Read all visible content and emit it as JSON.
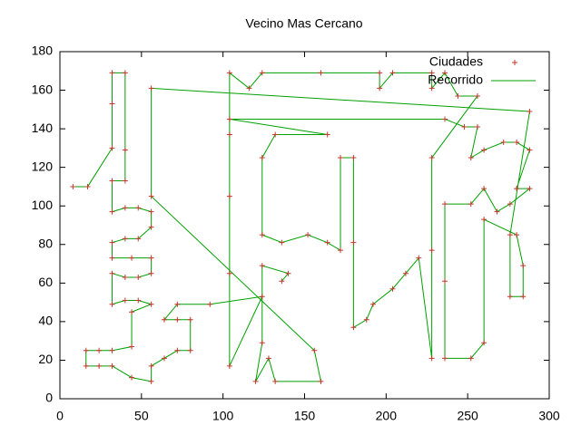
{
  "chart_data": {
    "type": "line",
    "title": "Vecino Mas Cercano",
    "x": [
      8,
      17,
      32,
      32,
      32,
      40,
      40,
      40,
      32,
      32,
      40,
      48,
      56,
      56,
      48,
      40,
      32,
      32,
      44,
      56,
      56,
      48,
      40,
      32,
      32,
      40,
      48,
      56,
      44,
      44,
      32,
      24,
      16,
      16,
      24,
      32,
      44,
      56,
      56,
      64,
      72,
      80,
      80,
      72,
      64,
      72,
      92,
      124,
      104,
      104,
      104,
      104,
      104,
      116,
      124,
      160,
      196,
      196,
      204,
      228,
      228,
      236,
      244,
      256,
      228,
      228,
      228,
      220,
      212,
      204,
      192,
      188,
      180,
      180,
      180,
      172,
      172,
      164,
      152,
      136,
      124,
      124,
      132,
      164,
      104,
      236,
      248,
      256,
      252,
      260,
      272,
      280,
      288,
      280,
      288,
      276,
      268,
      260,
      252,
      236,
      236,
      236,
      252,
      260,
      260,
      280,
      284,
      284,
      276,
      276,
      288,
      56,
      56,
      156,
      160,
      132,
      128,
      120,
      124,
      124,
      140,
      136
    ],
    "series": [
      {
        "name": "Ciudades",
        "color": "#c0392b",
        "values": [
          110,
          110,
          130,
          153,
          169,
          169,
          129,
          113,
          113,
          97,
          99,
          99,
          97,
          89,
          83,
          83,
          81,
          73,
          73,
          73,
          65,
          63,
          63,
          65,
          49,
          51,
          51,
          49,
          45,
          27,
          25,
          25,
          25,
          17,
          17,
          17,
          11,
          9,
          17,
          21,
          25,
          25,
          41,
          41,
          41,
          49,
          49,
          53,
          17,
          65,
          105,
          137,
          169,
          161,
          169,
          169,
          169,
          161,
          169,
          169,
          161,
          169,
          157,
          157,
          125,
          77,
          21,
          73,
          65,
          57,
          49,
          41,
          37,
          81,
          125,
          125,
          77,
          81,
          85,
          81,
          85,
          125,
          137,
          137,
          145,
          145,
          141,
          141,
          125,
          129,
          133,
          133,
          129,
          109,
          109,
          101,
          97,
          109,
          101,
          101,
          61,
          21,
          21,
          29,
          93,
          85,
          69,
          53,
          53,
          85,
          149,
          161,
          105,
          25,
          9,
          9,
          21,
          9,
          29,
          69,
          65,
          61
        ]
      },
      {
        "name": "Recorrido",
        "color": "#00a000",
        "values": [
          110,
          110,
          130,
          153,
          169,
          169,
          129,
          113,
          113,
          97,
          99,
          99,
          97,
          89,
          83,
          83,
          81,
          73,
          73,
          73,
          65,
          63,
          63,
          65,
          49,
          51,
          51,
          49,
          45,
          27,
          25,
          25,
          25,
          17,
          17,
          17,
          11,
          9,
          17,
          21,
          25,
          25,
          41,
          41,
          41,
          49,
          49,
          53,
          17,
          65,
          105,
          137,
          169,
          161,
          169,
          169,
          169,
          161,
          169,
          169,
          161,
          169,
          157,
          157,
          125,
          77,
          21,
          73,
          65,
          57,
          49,
          41,
          37,
          81,
          125,
          125,
          77,
          81,
          85,
          81,
          85,
          125,
          137,
          137,
          145,
          145,
          141,
          141,
          125,
          129,
          133,
          133,
          129,
          109,
          109,
          101,
          97,
          109,
          101,
          101,
          61,
          21,
          21,
          29,
          93,
          85,
          69,
          53,
          53,
          85,
          149,
          161,
          105,
          25,
          9,
          9,
          21,
          9,
          29,
          69,
          65,
          61
        ]
      }
    ],
    "xlim": [
      0,
      300
    ],
    "ylim": [
      0,
      180
    ],
    "xticks": [
      0,
      50,
      100,
      150,
      200,
      250,
      300
    ],
    "yticks": [
      0,
      20,
      40,
      60,
      80,
      100,
      120,
      140,
      160,
      180
    ],
    "legend": "top-right"
  }
}
